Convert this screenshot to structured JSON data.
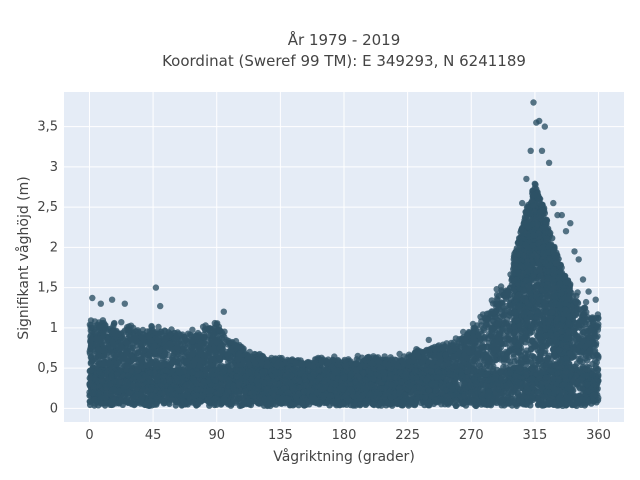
{
  "chart_data": {
    "type": "scatter",
    "title_line1": "År 1979 - 2019",
    "title_line2": "Koordinat (Sweref 99 TM): E 349293, N 6241189",
    "xlabel": "Vågriktning (grader)",
    "ylabel": "Signifikant våghöjd (m)",
    "xlim": [
      -18,
      378
    ],
    "ylim": [
      -0.17,
      3.93
    ],
    "xticks": [
      0,
      45,
      90,
      135,
      180,
      225,
      270,
      315,
      360
    ],
    "xtick_labels": [
      "0",
      "45",
      "90",
      "135",
      "180",
      "225",
      "270",
      "315",
      "360"
    ],
    "yticks": [
      0,
      0.5,
      1,
      1.5,
      2,
      2.5,
      3,
      3.5
    ],
    "ytick_labels": [
      "0",
      "0,5",
      "1",
      "1,5",
      "2",
      "2,5",
      "3",
      "3,5"
    ],
    "grid": true,
    "marker_color": "#2e5266",
    "background_color": "#e5ecf6",
    "envelope": {
      "direction": [
        0,
        10,
        20,
        30,
        45,
        60,
        75,
        90,
        100,
        110,
        120,
        135,
        150,
        165,
        180,
        195,
        210,
        225,
        240,
        255,
        265,
        275,
        285,
        295,
        300,
        305,
        310,
        315,
        320,
        325,
        330,
        335,
        340,
        345,
        350,
        355,
        360
      ],
      "typical_max_height": [
        1.1,
        1.1,
        1.05,
        1.0,
        1.0,
        0.95,
        0.95,
        1.05,
        0.85,
        0.72,
        0.65,
        0.6,
        0.58,
        0.6,
        0.6,
        0.62,
        0.62,
        0.65,
        0.75,
        0.8,
        0.95,
        1.1,
        1.35,
        1.6,
        1.85,
        2.15,
        2.5,
        2.75,
        2.55,
        2.2,
        1.9,
        1.65,
        1.5,
        1.4,
        1.3,
        1.2,
        1.15
      ]
    },
    "outliers": [
      {
        "x": 2,
        "y": 1.37
      },
      {
        "x": 8,
        "y": 1.3
      },
      {
        "x": 16,
        "y": 1.35
      },
      {
        "x": 25,
        "y": 1.3
      },
      {
        "x": 47,
        "y": 1.5
      },
      {
        "x": 50,
        "y": 1.27
      },
      {
        "x": 95,
        "y": 1.2
      },
      {
        "x": 240,
        "y": 0.85
      },
      {
        "x": 288,
        "y": 1.48
      },
      {
        "x": 300,
        "y": 1.85
      },
      {
        "x": 306,
        "y": 2.55
      },
      {
        "x": 309,
        "y": 2.85
      },
      {
        "x": 312,
        "y": 3.2
      },
      {
        "x": 314,
        "y": 3.8
      },
      {
        "x": 316,
        "y": 3.55
      },
      {
        "x": 318,
        "y": 3.57
      },
      {
        "x": 320,
        "y": 3.2
      },
      {
        "x": 322,
        "y": 3.5
      },
      {
        "x": 325,
        "y": 3.05
      },
      {
        "x": 328,
        "y": 2.55
      },
      {
        "x": 331,
        "y": 2.4
      },
      {
        "x": 334,
        "y": 2.4
      },
      {
        "x": 337,
        "y": 2.2
      },
      {
        "x": 340,
        "y": 2.3
      },
      {
        "x": 343,
        "y": 1.95
      },
      {
        "x": 346,
        "y": 1.85
      },
      {
        "x": 349,
        "y": 1.6
      },
      {
        "x": 353,
        "y": 1.45
      },
      {
        "x": 358,
        "y": 1.35
      },
      {
        "x": 330,
        "y": 1.8
      }
    ]
  }
}
